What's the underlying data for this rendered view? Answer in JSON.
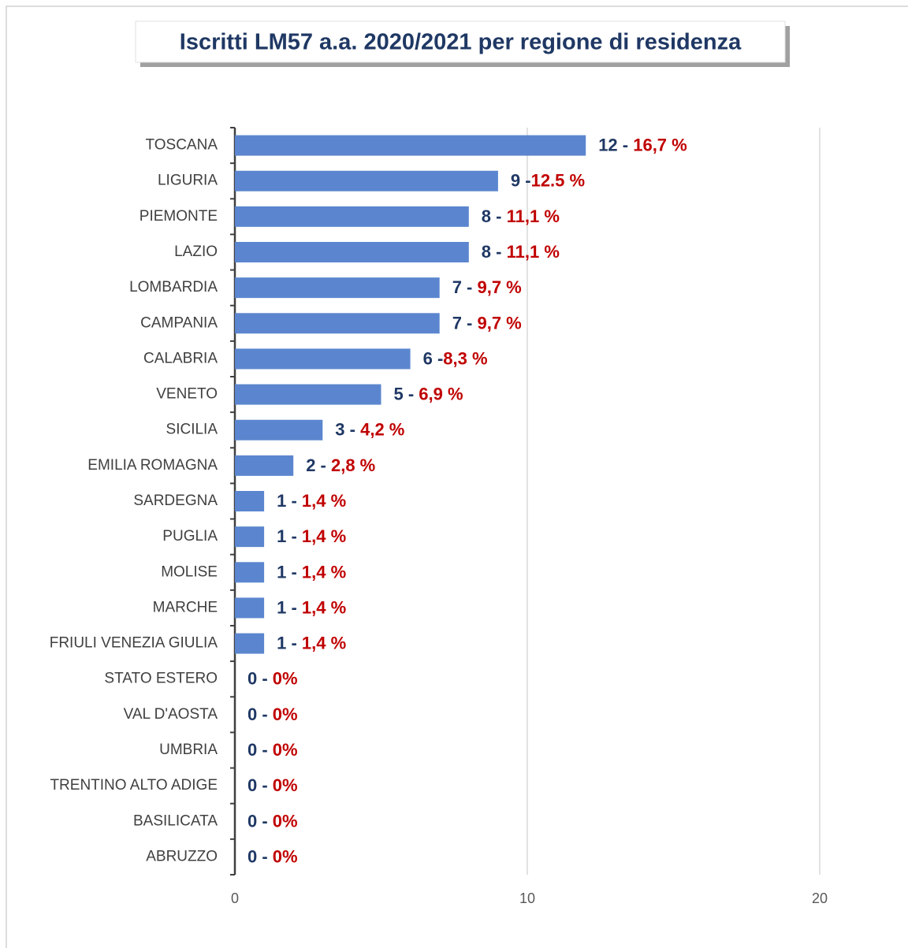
{
  "chart_data": {
    "type": "bar",
    "orientation": "horizontal",
    "title": "Iscritti LM57 a.a. 2020/2021 per regione di residenza",
    "categories": [
      "TOSCANA",
      "LIGURIA",
      "PIEMONTE",
      "LAZIO",
      "LOMBARDIA",
      "CAMPANIA",
      "CALABRIA",
      "VENETO",
      "SICILIA",
      "EMILIA ROMAGNA",
      "SARDEGNA",
      "PUGLIA",
      "MOLISE",
      "MARCHE",
      "FRIULI VENEZIA GIULIA",
      "STATO ESTERO",
      "VAL D'AOSTA",
      "UMBRIA",
      "TRENTINO ALTO ADIGE",
      "BASILICATA",
      "ABRUZZO"
    ],
    "values": [
      12,
      9,
      8,
      8,
      7,
      7,
      6,
      5,
      3,
      2,
      1,
      1,
      1,
      1,
      1,
      0,
      0,
      0,
      0,
      0,
      0
    ],
    "value_labels": [
      "12 - 16,7 %",
      "9 -12.5 %",
      "8 - 11,1 %",
      "8 - 11,1 %",
      "7 - 9,7 %",
      "7 - 9,7 %",
      "6 -8,3 %",
      "5 - 6,9 %",
      "3 - 4,2 %",
      "2 - 2,8 %",
      "1 - 1,4 %",
      "1 - 1,4 %",
      "1 - 1,4 %",
      "1 - 1,4 %",
      "1 - 1,4 %",
      "0 - 0%",
      "0 - 0%",
      "0 - 0%",
      "0 - 0%",
      "0 - 0%",
      "0 - 0%"
    ],
    "color": "#5b86cf",
    "count_color": "#1f3864",
    "percent_color": "#c00000",
    "xlim": [
      0,
      20
    ],
    "xticks": [
      0,
      10,
      20
    ],
    "grid": true
  }
}
